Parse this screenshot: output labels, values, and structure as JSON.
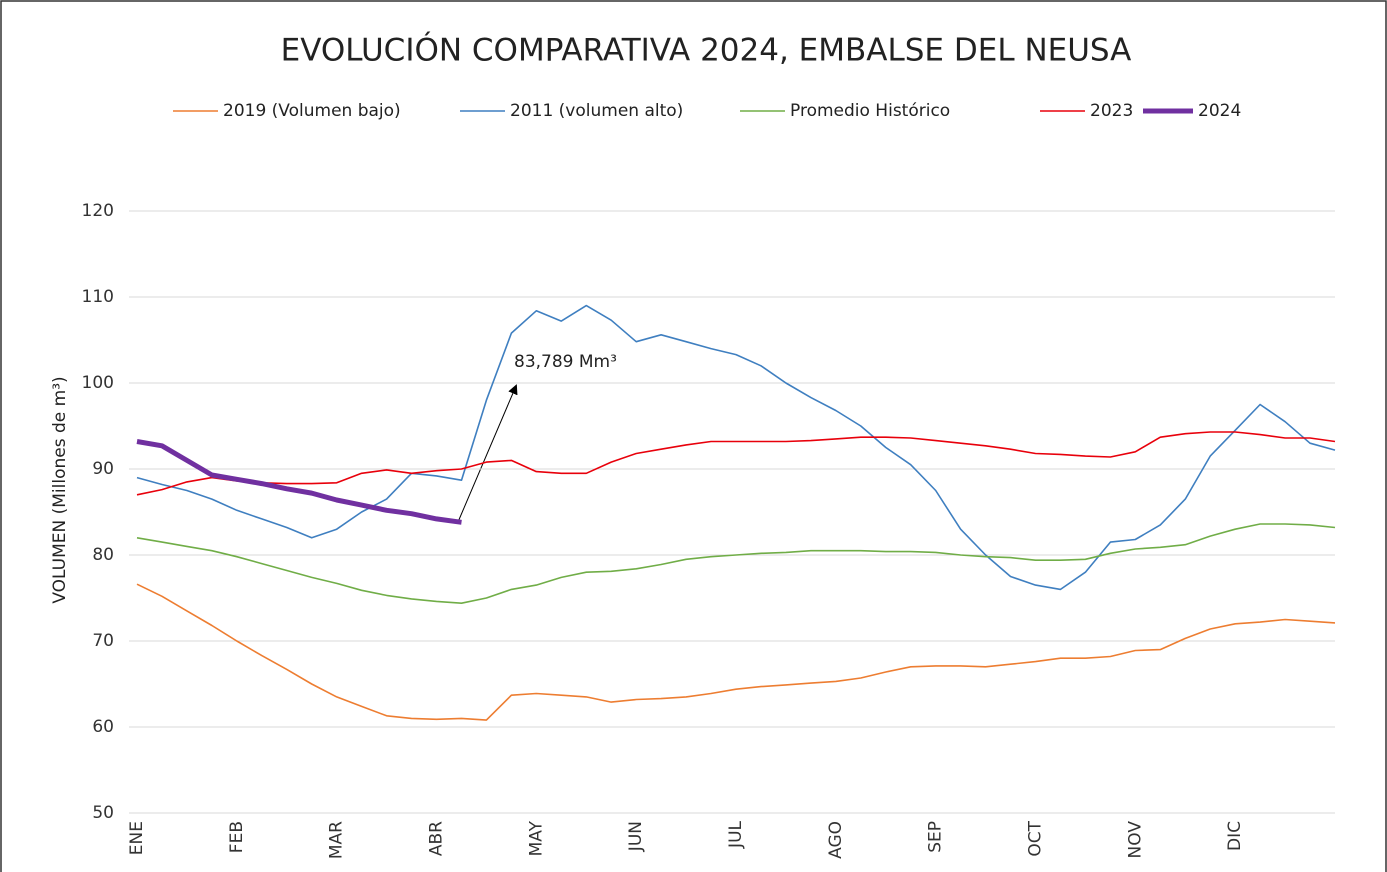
{
  "chart_data": {
    "type": "line",
    "title": "EVOLUCIÓN COMPARATIVA 2024, EMBALSE DEL NEUSA",
    "y_label": "VOLUMEN (Millones de m³)",
    "annotation": "83,789 Mm³",
    "categories": [
      "ENE",
      null,
      null,
      null,
      "FEB",
      null,
      null,
      null,
      "MAR",
      null,
      null,
      null,
      "ABR",
      null,
      null,
      null,
      "MAY",
      null,
      null,
      null,
      "JUN",
      null,
      null,
      null,
      "JUL",
      null,
      null,
      null,
      "AGO",
      null,
      null,
      null,
      "SEP",
      null,
      null,
      null,
      "OCT",
      null,
      null,
      null,
      "NOV",
      null,
      null,
      null,
      "DIC",
      null,
      null,
      null,
      null
    ],
    "ylim": [
      50,
      120
    ],
    "yticks": [
      50,
      60,
      70,
      80,
      90,
      100,
      110,
      120
    ],
    "grid": true,
    "series": [
      {
        "name": "2019 (Volumen bajo)",
        "color": "#ed7d31",
        "line_width": 1.6,
        "values": [
          76.6,
          75.2,
          73.5,
          71.8,
          70.0,
          68.3,
          66.7,
          65.0,
          63.5,
          62.4,
          61.3,
          61.0,
          60.9,
          61.0,
          60.8,
          63.7,
          63.9,
          63.7,
          63.5,
          62.9,
          63.2,
          63.3,
          63.5,
          63.9,
          64.4,
          64.7,
          64.9,
          65.1,
          65.3,
          65.7,
          66.4,
          67.0,
          67.1,
          67.1,
          67.0,
          67.3,
          67.6,
          68.0,
          68.0,
          68.2,
          68.9,
          69.0,
          70.3,
          71.4,
          72.0,
          72.2,
          72.5,
          72.3,
          72.1
        ]
      },
      {
        "name": "2011 (volumen alto)",
        "color": "#3f7fc0",
        "line_width": 1.6,
        "values": [
          89.0,
          88.2,
          87.5,
          86.5,
          85.2,
          84.2,
          83.2,
          82.0,
          83.0,
          85.0,
          86.5,
          89.5,
          89.2,
          88.7,
          98.0,
          105.8,
          108.4,
          107.2,
          109.0,
          107.3,
          104.8,
          105.6,
          104.8,
          104.0,
          103.3,
          102.0,
          100.0,
          98.3,
          96.8,
          95.0,
          92.5,
          90.5,
          87.5,
          83.0,
          80.0,
          77.5,
          76.5,
          76.0,
          78.0,
          81.5,
          81.8,
          83.5,
          86.5,
          91.5,
          94.5,
          97.5,
          95.5,
          93.0,
          92.2
        ]
      },
      {
        "name": "Promedio Histórico",
        "color": "#70ad47",
        "line_width": 1.6,
        "values": [
          82.0,
          81.5,
          81.0,
          80.5,
          79.8,
          79.0,
          78.2,
          77.4,
          76.7,
          75.9,
          75.3,
          74.9,
          74.6,
          74.4,
          75.0,
          76.0,
          76.5,
          77.4,
          78.0,
          78.1,
          78.4,
          78.9,
          79.5,
          79.8,
          80.0,
          80.2,
          80.3,
          80.5,
          80.5,
          80.5,
          80.4,
          80.4,
          80.3,
          80.0,
          79.8,
          79.7,
          79.4,
          79.4,
          79.5,
          80.2,
          80.7,
          80.9,
          81.2,
          82.2,
          83.0,
          83.6,
          83.6,
          83.5,
          83.2
        ]
      },
      {
        "name": "2023",
        "color": "#e8000b",
        "line_width": 1.6,
        "values": [
          87.0,
          87.6,
          88.5,
          89.0,
          88.6,
          88.4,
          88.3,
          88.3,
          88.4,
          89.5,
          89.9,
          89.5,
          89.8,
          90.0,
          90.8,
          91.0,
          89.7,
          89.5,
          89.5,
          90.8,
          91.8,
          92.3,
          92.8,
          93.2,
          93.2,
          93.2,
          93.2,
          93.3,
          93.5,
          93.7,
          93.7,
          93.6,
          93.3,
          93.0,
          92.7,
          92.3,
          91.8,
          91.7,
          91.5,
          91.4,
          92.0,
          93.7,
          94.1,
          94.3,
          94.3,
          94.0,
          93.6,
          93.6,
          93.2
        ]
      },
      {
        "name": "2024",
        "color": "#7030a0",
        "line_width": 5,
        "values": [
          93.2,
          92.7,
          91.0,
          89.3,
          88.8,
          88.3,
          87.7,
          87.2,
          86.4,
          85.8,
          85.2,
          84.8,
          84.2,
          83.8,
          null,
          null,
          null,
          null,
          null,
          null,
          null,
          null,
          null,
          null,
          null,
          null,
          null,
          null,
          null,
          null,
          null,
          null,
          null,
          null,
          null,
          null,
          null,
          null,
          null,
          null,
          null,
          null,
          null,
          null,
          null,
          null,
          null,
          null,
          null
        ]
      }
    ]
  }
}
